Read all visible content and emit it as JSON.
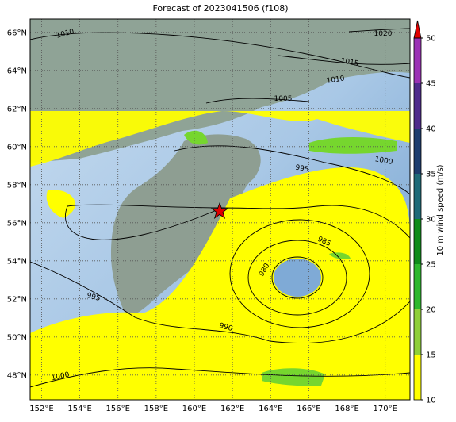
{
  "title": "Forecast of 2023041506 (f108)",
  "map": {
    "lon_range": [
      151.4,
      171.3
    ],
    "lat_range": [
      46.7,
      66.7
    ],
    "lon_ticks": [
      {
        "value": 152,
        "label": "152°E"
      },
      {
        "value": 154,
        "label": "154°E"
      },
      {
        "value": 156,
        "label": "156°E"
      },
      {
        "value": 158,
        "label": "158°E"
      },
      {
        "value": 160,
        "label": "160°E"
      },
      {
        "value": 162,
        "label": "162°E"
      },
      {
        "value": 164,
        "label": "164°E"
      },
      {
        "value": 166,
        "label": "166°E"
      },
      {
        "value": 168,
        "label": "168°E"
      },
      {
        "value": 170,
        "label": "170°E"
      }
    ],
    "lat_ticks": [
      {
        "value": 48,
        "label": "48°N"
      },
      {
        "value": 50,
        "label": "50°N"
      },
      {
        "value": 52,
        "label": "52°N"
      },
      {
        "value": 54,
        "label": "54°N"
      },
      {
        "value": 56,
        "label": "56°N"
      },
      {
        "value": 58,
        "label": "58°N"
      },
      {
        "value": 60,
        "label": "60°N"
      },
      {
        "value": 62,
        "label": "62°N"
      },
      {
        "value": 64,
        "label": "64°N"
      },
      {
        "value": 66,
        "label": "66°N"
      }
    ],
    "contour_labels": [
      1010,
      1020,
      1015,
      1010,
      1005,
      995,
      1000,
      985,
      980,
      995,
      990,
      1000
    ]
  },
  "colorbar": {
    "label": "10 m wind speed (m/s)",
    "range": [
      10,
      50
    ],
    "ticks": [
      10,
      15,
      20,
      25,
      30,
      35,
      40,
      45,
      50
    ],
    "colors": [
      "#ffff00",
      "#8fd03a",
      "#2db82d",
      "#0f8c1a",
      "#1f6a78",
      "#1e3d6e",
      "#4f2b8c",
      "#9b32b5"
    ],
    "extend_color": "#e00000"
  }
}
